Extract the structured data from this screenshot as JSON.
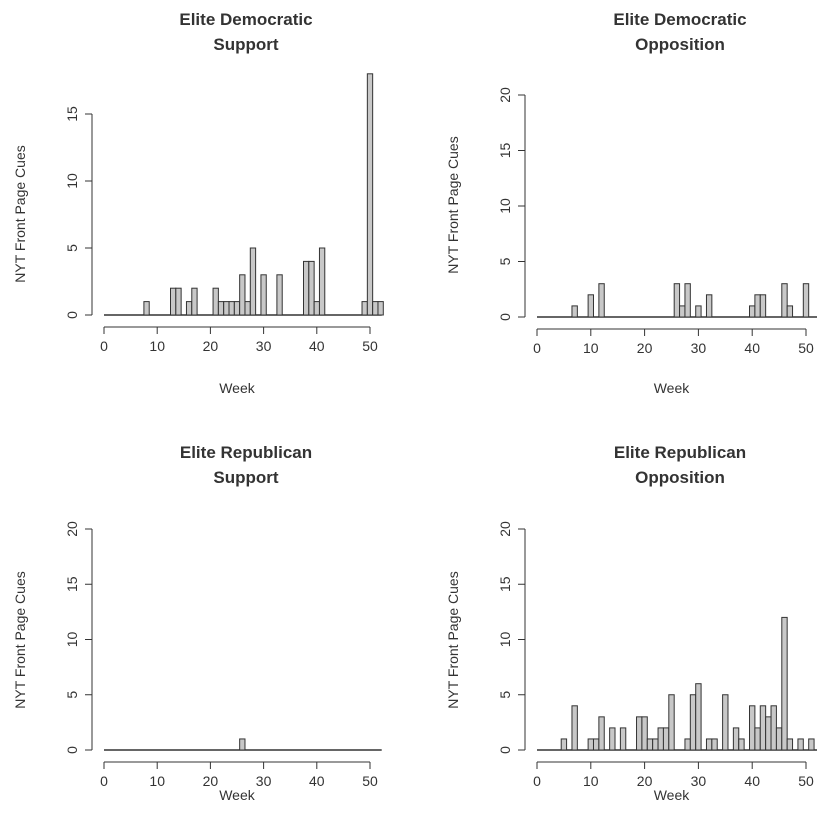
{
  "chart_data": [
    {
      "type": "bar",
      "title": [
        "Elite Democratic",
        "Support"
      ],
      "xlabel": "Week",
      "ylabel": "NYT Front Page Cues",
      "xlim": [
        0,
        52
      ],
      "ylim": [
        0,
        18
      ],
      "xticks": [
        0,
        10,
        20,
        30,
        40,
        50
      ],
      "yticks": [
        0,
        5,
        10,
        15
      ],
      "x": [
        8,
        13,
        14,
        16,
        17,
        21,
        22,
        23,
        24,
        25,
        26,
        27,
        28,
        30,
        33,
        38,
        39,
        40,
        41,
        49,
        50,
        51,
        52
      ],
      "values": [
        1,
        2,
        2,
        1,
        2,
        2,
        1,
        1,
        1,
        1,
        3,
        1,
        5,
        3,
        3,
        4,
        4,
        1,
        5,
        1,
        18,
        1,
        1
      ]
    },
    {
      "type": "bar",
      "title": [
        "Elite Democratic",
        "Opposition"
      ],
      "xlabel": "Week",
      "ylabel": "NYT Front Page Cues",
      "xlim": [
        0,
        52
      ],
      "ylim": [
        0,
        20
      ],
      "xticks": [
        0,
        10,
        20,
        30,
        40,
        50
      ],
      "yticks": [
        0,
        5,
        10,
        15,
        20
      ],
      "x": [
        7,
        10,
        12,
        26,
        27,
        28,
        30,
        32,
        40,
        41,
        42,
        46,
        47,
        50
      ],
      "values": [
        1,
        2,
        3,
        3,
        1,
        3,
        1,
        2,
        1,
        2,
        2,
        3,
        1,
        3
      ]
    },
    {
      "type": "bar",
      "title": [
        "Elite Republican",
        "Support"
      ],
      "xlabel": "Week",
      "ylabel": "NYT Front Page Cues",
      "xlim": [
        0,
        52
      ],
      "ylim": [
        0,
        20
      ],
      "xticks": [
        0,
        10,
        20,
        30,
        40,
        50
      ],
      "yticks": [
        0,
        5,
        10,
        15,
        20
      ],
      "x": [
        26
      ],
      "values": [
        1
      ]
    },
    {
      "type": "bar",
      "title": [
        "Elite Republican",
        "Opposition"
      ],
      "xlabel": "Week",
      "ylabel": "NYT Front Page Cues",
      "xlim": [
        0,
        52
      ],
      "ylim": [
        0,
        20
      ],
      "xticks": [
        0,
        10,
        20,
        30,
        40,
        50
      ],
      "yticks": [
        0,
        5,
        10,
        15,
        20
      ],
      "x": [
        5,
        7,
        10,
        11,
        12,
        14,
        16,
        19,
        20,
        21,
        22,
        23,
        24,
        25,
        28,
        29,
        30,
        32,
        33,
        35,
        37,
        38,
        40,
        41,
        42,
        43,
        44,
        45,
        46,
        47,
        49,
        51
      ],
      "values": [
        1,
        4,
        1,
        1,
        3,
        2,
        2,
        3,
        3,
        1,
        1,
        2,
        2,
        5,
        1,
        5,
        6,
        1,
        1,
        5,
        2,
        1,
        4,
        2,
        4,
        3,
        4,
        2,
        12,
        1,
        1,
        1
      ]
    }
  ]
}
